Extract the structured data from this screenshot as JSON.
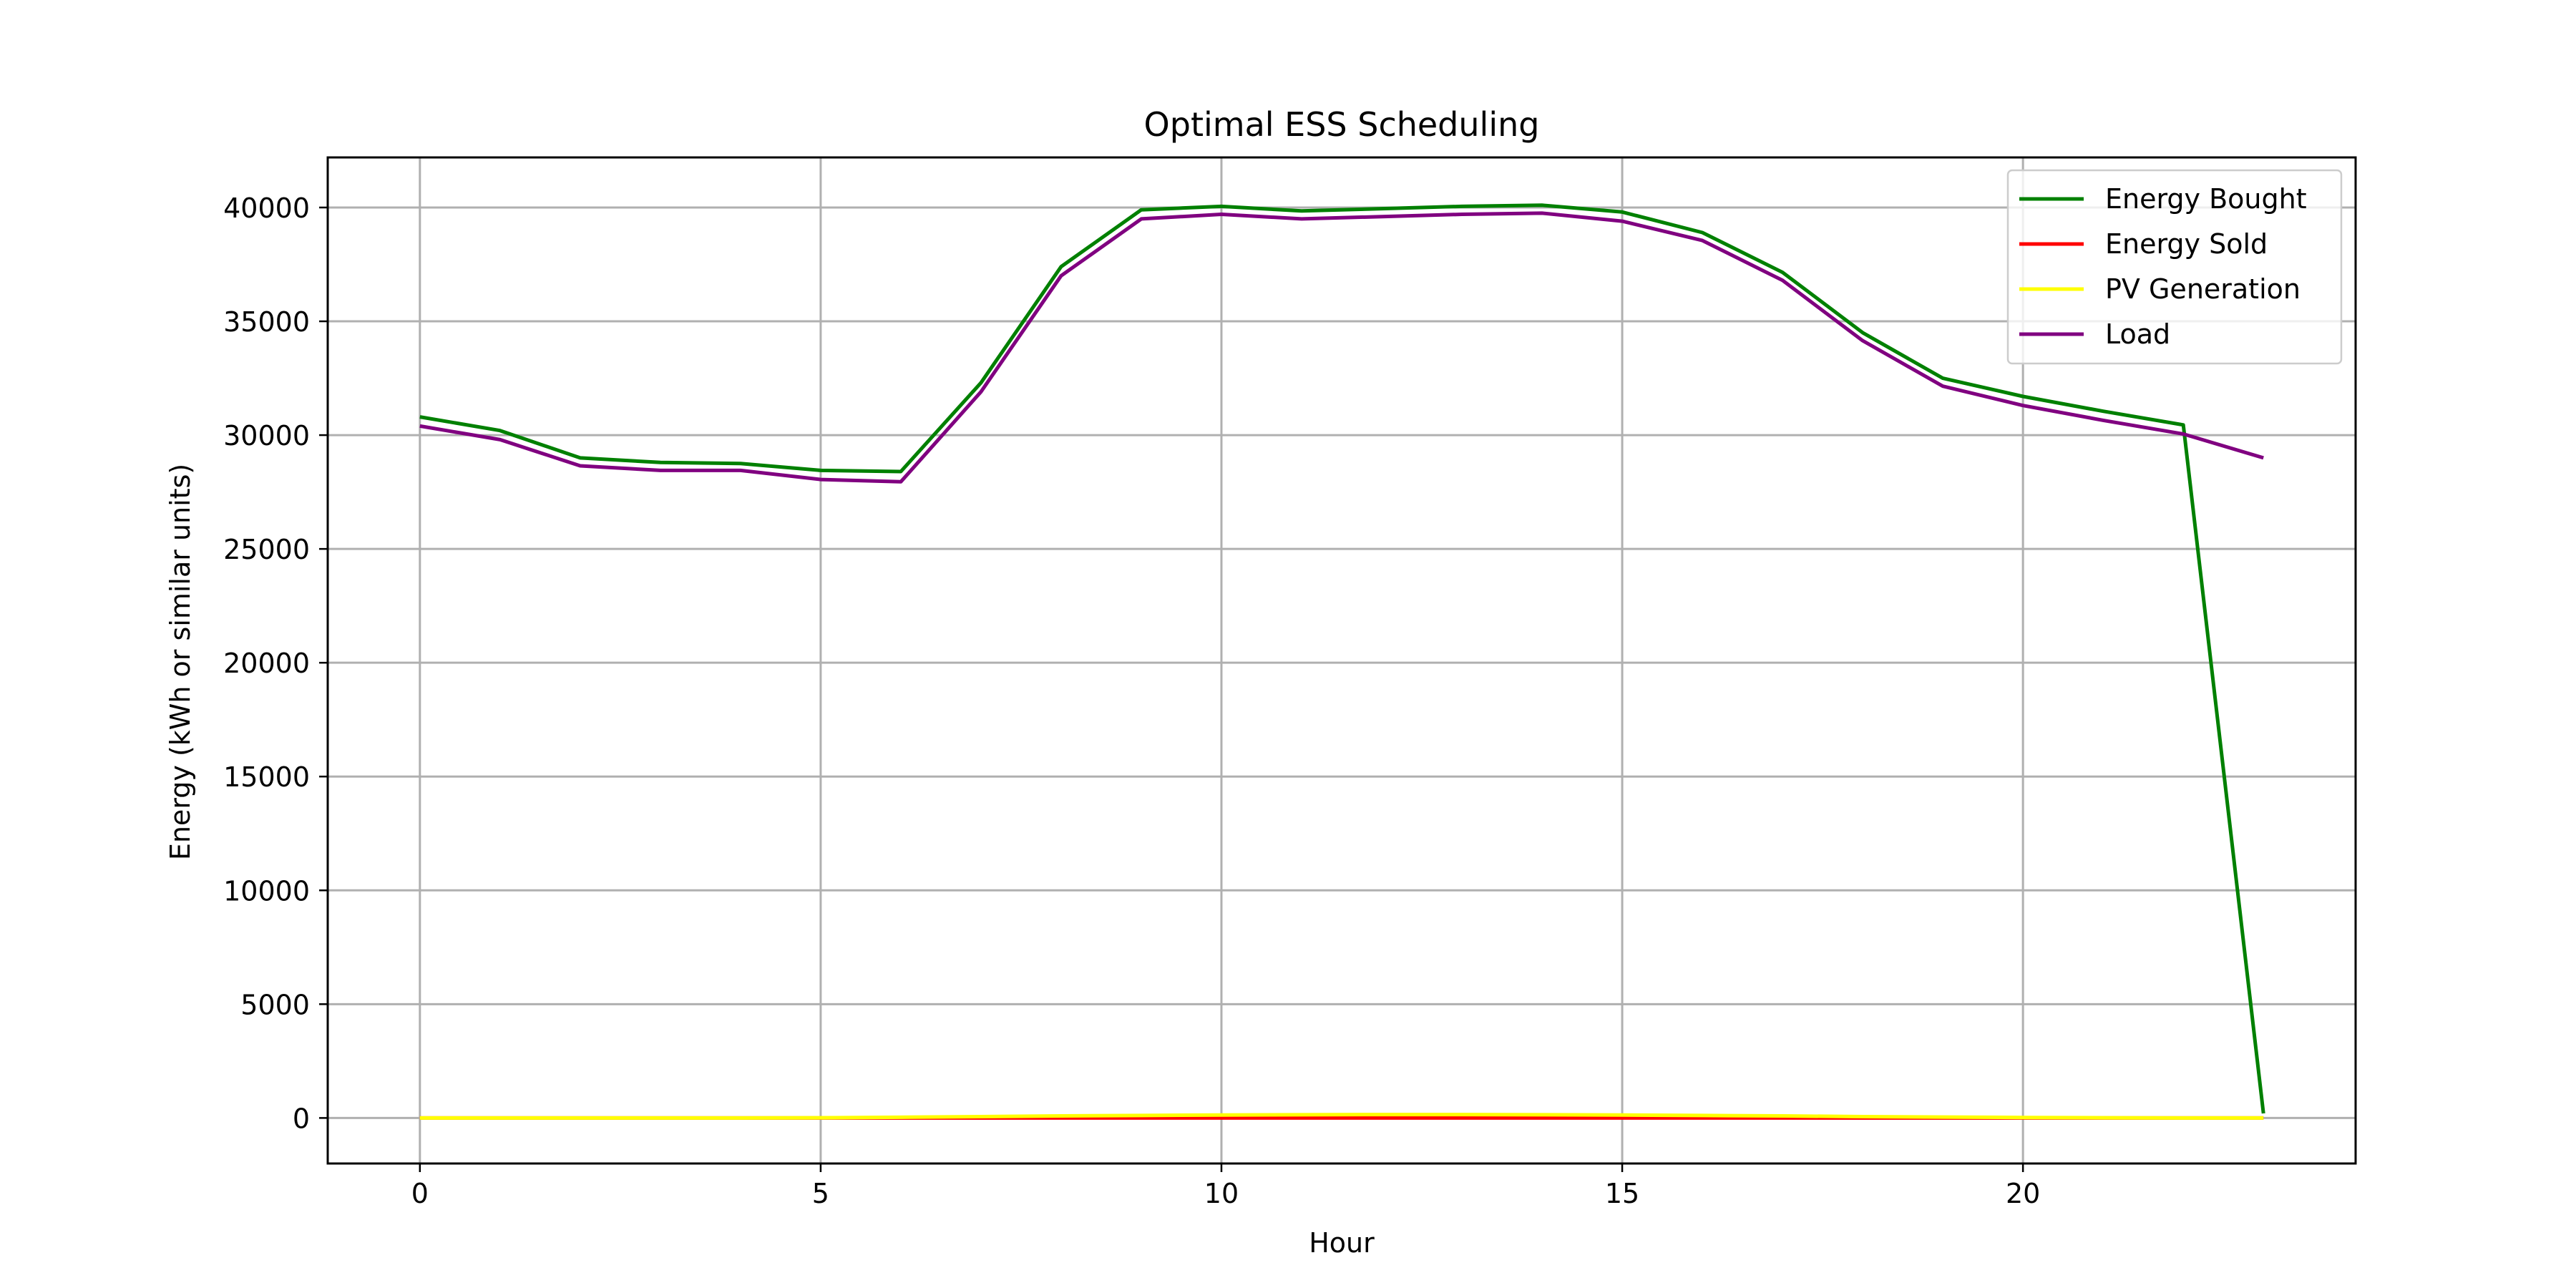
{
  "chart_data": {
    "type": "line",
    "title": "Optimal ESS Scheduling",
    "xlabel": "Hour",
    "ylabel": "Energy (kWh or similar units)",
    "xlim": [
      -1.15,
      24.15
    ],
    "ylim": [
      -2000,
      42200
    ],
    "xticks": [
      0,
      5,
      10,
      15,
      20
    ],
    "yticks": [
      0,
      5000,
      10000,
      15000,
      20000,
      25000,
      30000,
      35000,
      40000
    ],
    "grid": true,
    "legend_position": "top-right",
    "x": [
      0,
      1,
      2,
      3,
      4,
      5,
      6,
      7,
      8,
      9,
      10,
      11,
      12,
      13,
      14,
      15,
      16,
      17,
      18,
      19,
      20,
      21,
      22,
      23
    ],
    "series": [
      {
        "name": "Energy Bought",
        "color": "#008000",
        "values": [
          30800,
          30200,
          29000,
          28800,
          28750,
          28450,
          28400,
          32300,
          37400,
          39900,
          40050,
          39850,
          39950,
          40050,
          40100,
          39800,
          38900,
          37150,
          34500,
          32500,
          31700,
          31050,
          30450,
          200
        ]
      },
      {
        "name": "Energy Sold",
        "color": "#ff0000",
        "values": [
          0,
          0,
          0,
          0,
          0,
          0,
          0,
          0,
          0,
          0,
          0,
          0,
          0,
          0,
          0,
          0,
          0,
          0,
          0,
          0,
          0,
          0,
          0,
          0
        ]
      },
      {
        "name": "PV Generation",
        "color": "#ffff00",
        "values": [
          0,
          0,
          0,
          0,
          0,
          10,
          30,
          60,
          90,
          110,
          130,
          140,
          150,
          150,
          140,
          130,
          110,
          90,
          60,
          40,
          20,
          10,
          0,
          0
        ]
      },
      {
        "name": "Load",
        "color": "#800080",
        "values": [
          30400,
          29800,
          28650,
          28450,
          28450,
          28050,
          27950,
          31900,
          37000,
          39500,
          39700,
          39500,
          39600,
          39700,
          39750,
          39400,
          38550,
          36800,
          34150,
          32150,
          31300,
          30650,
          30050,
          29000
        ]
      }
    ]
  }
}
